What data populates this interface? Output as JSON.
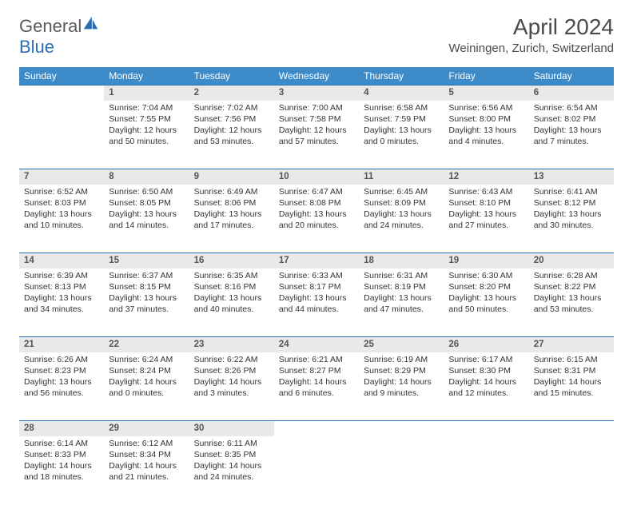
{
  "brand": {
    "text_a": "General",
    "text_b": "Blue"
  },
  "title": "April 2024",
  "location": "Weiningen, Zurich, Switzerland",
  "header_bg": "#3d8bc8",
  "accent_line": "#2c6fb0",
  "daynum_bg": "#e9e9e9",
  "weekdays": [
    "Sunday",
    "Monday",
    "Tuesday",
    "Wednesday",
    "Thursday",
    "Friday",
    "Saturday"
  ],
  "weeks": [
    {
      "nums": [
        "",
        "1",
        "2",
        "3",
        "4",
        "5",
        "6"
      ],
      "cells": [
        null,
        {
          "sr": "Sunrise: 7:04 AM",
          "ss": "Sunset: 7:55 PM",
          "d1": "Daylight: 12 hours",
          "d2": "and 50 minutes."
        },
        {
          "sr": "Sunrise: 7:02 AM",
          "ss": "Sunset: 7:56 PM",
          "d1": "Daylight: 12 hours",
          "d2": "and 53 minutes."
        },
        {
          "sr": "Sunrise: 7:00 AM",
          "ss": "Sunset: 7:58 PM",
          "d1": "Daylight: 12 hours",
          "d2": "and 57 minutes."
        },
        {
          "sr": "Sunrise: 6:58 AM",
          "ss": "Sunset: 7:59 PM",
          "d1": "Daylight: 13 hours",
          "d2": "and 0 minutes."
        },
        {
          "sr": "Sunrise: 6:56 AM",
          "ss": "Sunset: 8:00 PM",
          "d1": "Daylight: 13 hours",
          "d2": "and 4 minutes."
        },
        {
          "sr": "Sunrise: 6:54 AM",
          "ss": "Sunset: 8:02 PM",
          "d1": "Daylight: 13 hours",
          "d2": "and 7 minutes."
        }
      ]
    },
    {
      "nums": [
        "7",
        "8",
        "9",
        "10",
        "11",
        "12",
        "13"
      ],
      "cells": [
        {
          "sr": "Sunrise: 6:52 AM",
          "ss": "Sunset: 8:03 PM",
          "d1": "Daylight: 13 hours",
          "d2": "and 10 minutes."
        },
        {
          "sr": "Sunrise: 6:50 AM",
          "ss": "Sunset: 8:05 PM",
          "d1": "Daylight: 13 hours",
          "d2": "and 14 minutes."
        },
        {
          "sr": "Sunrise: 6:49 AM",
          "ss": "Sunset: 8:06 PM",
          "d1": "Daylight: 13 hours",
          "d2": "and 17 minutes."
        },
        {
          "sr": "Sunrise: 6:47 AM",
          "ss": "Sunset: 8:08 PM",
          "d1": "Daylight: 13 hours",
          "d2": "and 20 minutes."
        },
        {
          "sr": "Sunrise: 6:45 AM",
          "ss": "Sunset: 8:09 PM",
          "d1": "Daylight: 13 hours",
          "d2": "and 24 minutes."
        },
        {
          "sr": "Sunrise: 6:43 AM",
          "ss": "Sunset: 8:10 PM",
          "d1": "Daylight: 13 hours",
          "d2": "and 27 minutes."
        },
        {
          "sr": "Sunrise: 6:41 AM",
          "ss": "Sunset: 8:12 PM",
          "d1": "Daylight: 13 hours",
          "d2": "and 30 minutes."
        }
      ]
    },
    {
      "nums": [
        "14",
        "15",
        "16",
        "17",
        "18",
        "19",
        "20"
      ],
      "cells": [
        {
          "sr": "Sunrise: 6:39 AM",
          "ss": "Sunset: 8:13 PM",
          "d1": "Daylight: 13 hours",
          "d2": "and 34 minutes."
        },
        {
          "sr": "Sunrise: 6:37 AM",
          "ss": "Sunset: 8:15 PM",
          "d1": "Daylight: 13 hours",
          "d2": "and 37 minutes."
        },
        {
          "sr": "Sunrise: 6:35 AM",
          "ss": "Sunset: 8:16 PM",
          "d1": "Daylight: 13 hours",
          "d2": "and 40 minutes."
        },
        {
          "sr": "Sunrise: 6:33 AM",
          "ss": "Sunset: 8:17 PM",
          "d1": "Daylight: 13 hours",
          "d2": "and 44 minutes."
        },
        {
          "sr": "Sunrise: 6:31 AM",
          "ss": "Sunset: 8:19 PM",
          "d1": "Daylight: 13 hours",
          "d2": "and 47 minutes."
        },
        {
          "sr": "Sunrise: 6:30 AM",
          "ss": "Sunset: 8:20 PM",
          "d1": "Daylight: 13 hours",
          "d2": "and 50 minutes."
        },
        {
          "sr": "Sunrise: 6:28 AM",
          "ss": "Sunset: 8:22 PM",
          "d1": "Daylight: 13 hours",
          "d2": "and 53 minutes."
        }
      ]
    },
    {
      "nums": [
        "21",
        "22",
        "23",
        "24",
        "25",
        "26",
        "27"
      ],
      "cells": [
        {
          "sr": "Sunrise: 6:26 AM",
          "ss": "Sunset: 8:23 PM",
          "d1": "Daylight: 13 hours",
          "d2": "and 56 minutes."
        },
        {
          "sr": "Sunrise: 6:24 AM",
          "ss": "Sunset: 8:24 PM",
          "d1": "Daylight: 14 hours",
          "d2": "and 0 minutes."
        },
        {
          "sr": "Sunrise: 6:22 AM",
          "ss": "Sunset: 8:26 PM",
          "d1": "Daylight: 14 hours",
          "d2": "and 3 minutes."
        },
        {
          "sr": "Sunrise: 6:21 AM",
          "ss": "Sunset: 8:27 PM",
          "d1": "Daylight: 14 hours",
          "d2": "and 6 minutes."
        },
        {
          "sr": "Sunrise: 6:19 AM",
          "ss": "Sunset: 8:29 PM",
          "d1": "Daylight: 14 hours",
          "d2": "and 9 minutes."
        },
        {
          "sr": "Sunrise: 6:17 AM",
          "ss": "Sunset: 8:30 PM",
          "d1": "Daylight: 14 hours",
          "d2": "and 12 minutes."
        },
        {
          "sr": "Sunrise: 6:15 AM",
          "ss": "Sunset: 8:31 PM",
          "d1": "Daylight: 14 hours",
          "d2": "and 15 minutes."
        }
      ]
    },
    {
      "nums": [
        "28",
        "29",
        "30",
        "",
        "",
        "",
        ""
      ],
      "cells": [
        {
          "sr": "Sunrise: 6:14 AM",
          "ss": "Sunset: 8:33 PM",
          "d1": "Daylight: 14 hours",
          "d2": "and 18 minutes."
        },
        {
          "sr": "Sunrise: 6:12 AM",
          "ss": "Sunset: 8:34 PM",
          "d1": "Daylight: 14 hours",
          "d2": "and 21 minutes."
        },
        {
          "sr": "Sunrise: 6:11 AM",
          "ss": "Sunset: 8:35 PM",
          "d1": "Daylight: 14 hours",
          "d2": "and 24 minutes."
        },
        null,
        null,
        null,
        null
      ]
    }
  ]
}
